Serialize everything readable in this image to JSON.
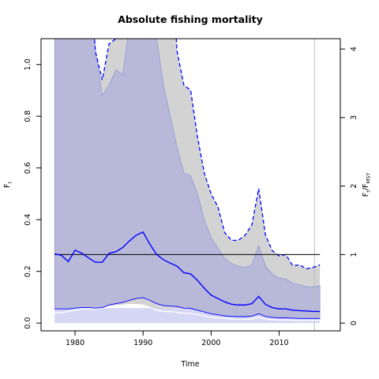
{
  "chart_data": {
    "type": "line",
    "title": "Absolute fishing mortality",
    "xlabel": "Time",
    "ylabel_left": {
      "main": "F",
      "sub": "t"
    },
    "ylabel_right": {
      "main": "F",
      "sub1": "t",
      "mid": "/F",
      "sub2": "MSY"
    },
    "xlim": [
      1975,
      2019
    ],
    "ylim_left": [
      -0.03,
      1.1
    ],
    "fmsy": 0.265,
    "x_ticks": [
      1980,
      1990,
      2000,
      2010
    ],
    "y_ticks_left": [
      0.0,
      0.2,
      0.4,
      0.6,
      0.8,
      1.0
    ],
    "y_ticks_right": [
      0,
      1,
      2,
      3,
      4
    ],
    "prediction_start": 2015.2,
    "legend": "none",
    "grid": false,
    "colors": {
      "estimate_line": "#0000ff",
      "absolute_ci_fill": "#b8b9d9",
      "relative_ci_fill": "#d3d3d3",
      "reference_line": "#000000",
      "prediction_line": "#bbbbbb",
      "lower_ref_band": "#d6d6f5"
    },
    "x": [
      1977,
      1978,
      1979,
      1980,
      1981,
      1982,
      1983,
      1984,
      1985,
      1986,
      1987,
      1988,
      1989,
      1990,
      1991,
      1992,
      1993,
      1994,
      1995,
      1996,
      1997,
      1998,
      1999,
      2000,
      2001,
      2002,
      2003,
      2004,
      2005,
      2006,
      2007,
      2008,
      2009,
      2010,
      2011,
      2012,
      2013,
      2014,
      2015,
      2016
    ],
    "series": [
      {
        "role": "estimate",
        "style": "solid",
        "values": [
          0.268,
          0.262,
          0.238,
          0.282,
          0.27,
          0.252,
          0.235,
          0.235,
          0.27,
          0.276,
          0.292,
          0.318,
          0.34,
          0.352,
          0.305,
          0.265,
          0.245,
          0.232,
          0.22,
          0.195,
          0.19,
          0.165,
          0.135,
          0.108,
          0.095,
          0.082,
          0.073,
          0.07,
          0.07,
          0.075,
          0.103,
          0.072,
          0.06,
          0.055,
          0.055,
          0.05,
          0.048,
          0.047,
          0.045,
          0.045
        ]
      },
      {
        "role": "ci_upper_relative",
        "style": "dashed",
        "values": [
          1.5,
          1.5,
          1.5,
          1.5,
          1.5,
          1.4,
          1.05,
          0.94,
          1.08,
          1.1,
          1.3,
          1.5,
          1.5,
          1.5,
          1.5,
          1.5,
          1.5,
          1.5,
          1.05,
          0.92,
          0.9,
          0.72,
          0.58,
          0.5,
          0.45,
          0.35,
          0.32,
          0.32,
          0.34,
          0.38,
          0.52,
          0.34,
          0.28,
          0.26,
          0.265,
          0.222,
          0.225,
          0.21,
          0.215,
          0.225
        ]
      },
      {
        "role": "ci_lower_relative",
        "style": "solid-white",
        "values": [
          0.04,
          0.04,
          0.045,
          0.05,
          0.055,
          0.055,
          0.055,
          0.058,
          0.065,
          0.067,
          0.07,
          0.072,
          0.072,
          0.07,
          0.06,
          0.05,
          0.045,
          0.044,
          0.042,
          0.038,
          0.037,
          0.033,
          0.027,
          0.022,
          0.02,
          0.018,
          0.016,
          0.015,
          0.015,
          0.016,
          0.022,
          0.015,
          0.013,
          0.012,
          0.012,
          0.011,
          0.01,
          0.01,
          0.01,
          0.01
        ]
      },
      {
        "role": "ci_upper_absolute",
        "style": "band-top",
        "values": [
          1.5,
          1.5,
          1.5,
          1.5,
          1.5,
          1.5,
          1.05,
          0.88,
          0.92,
          0.98,
          0.96,
          1.15,
          1.5,
          1.5,
          1.5,
          1.1,
          0.92,
          0.8,
          0.68,
          0.58,
          0.57,
          0.5,
          0.4,
          0.33,
          0.29,
          0.25,
          0.23,
          0.22,
          0.215,
          0.225,
          0.3,
          0.22,
          0.19,
          0.175,
          0.17,
          0.155,
          0.148,
          0.14,
          0.14,
          0.145
        ]
      },
      {
        "role": "ci_lower_absolute",
        "style": "band-bottom",
        "values": [
          0.055,
          0.055,
          0.055,
          0.058,
          0.06,
          0.06,
          0.058,
          0.06,
          0.07,
          0.075,
          0.08,
          0.088,
          0.095,
          0.098,
          0.088,
          0.075,
          0.068,
          0.066,
          0.064,
          0.058,
          0.057,
          0.05,
          0.043,
          0.036,
          0.032,
          0.028,
          0.026,
          0.025,
          0.025,
          0.027,
          0.036,
          0.026,
          0.022,
          0.02,
          0.02,
          0.019,
          0.018,
          0.018,
          0.018,
          0.018
        ]
      }
    ]
  }
}
